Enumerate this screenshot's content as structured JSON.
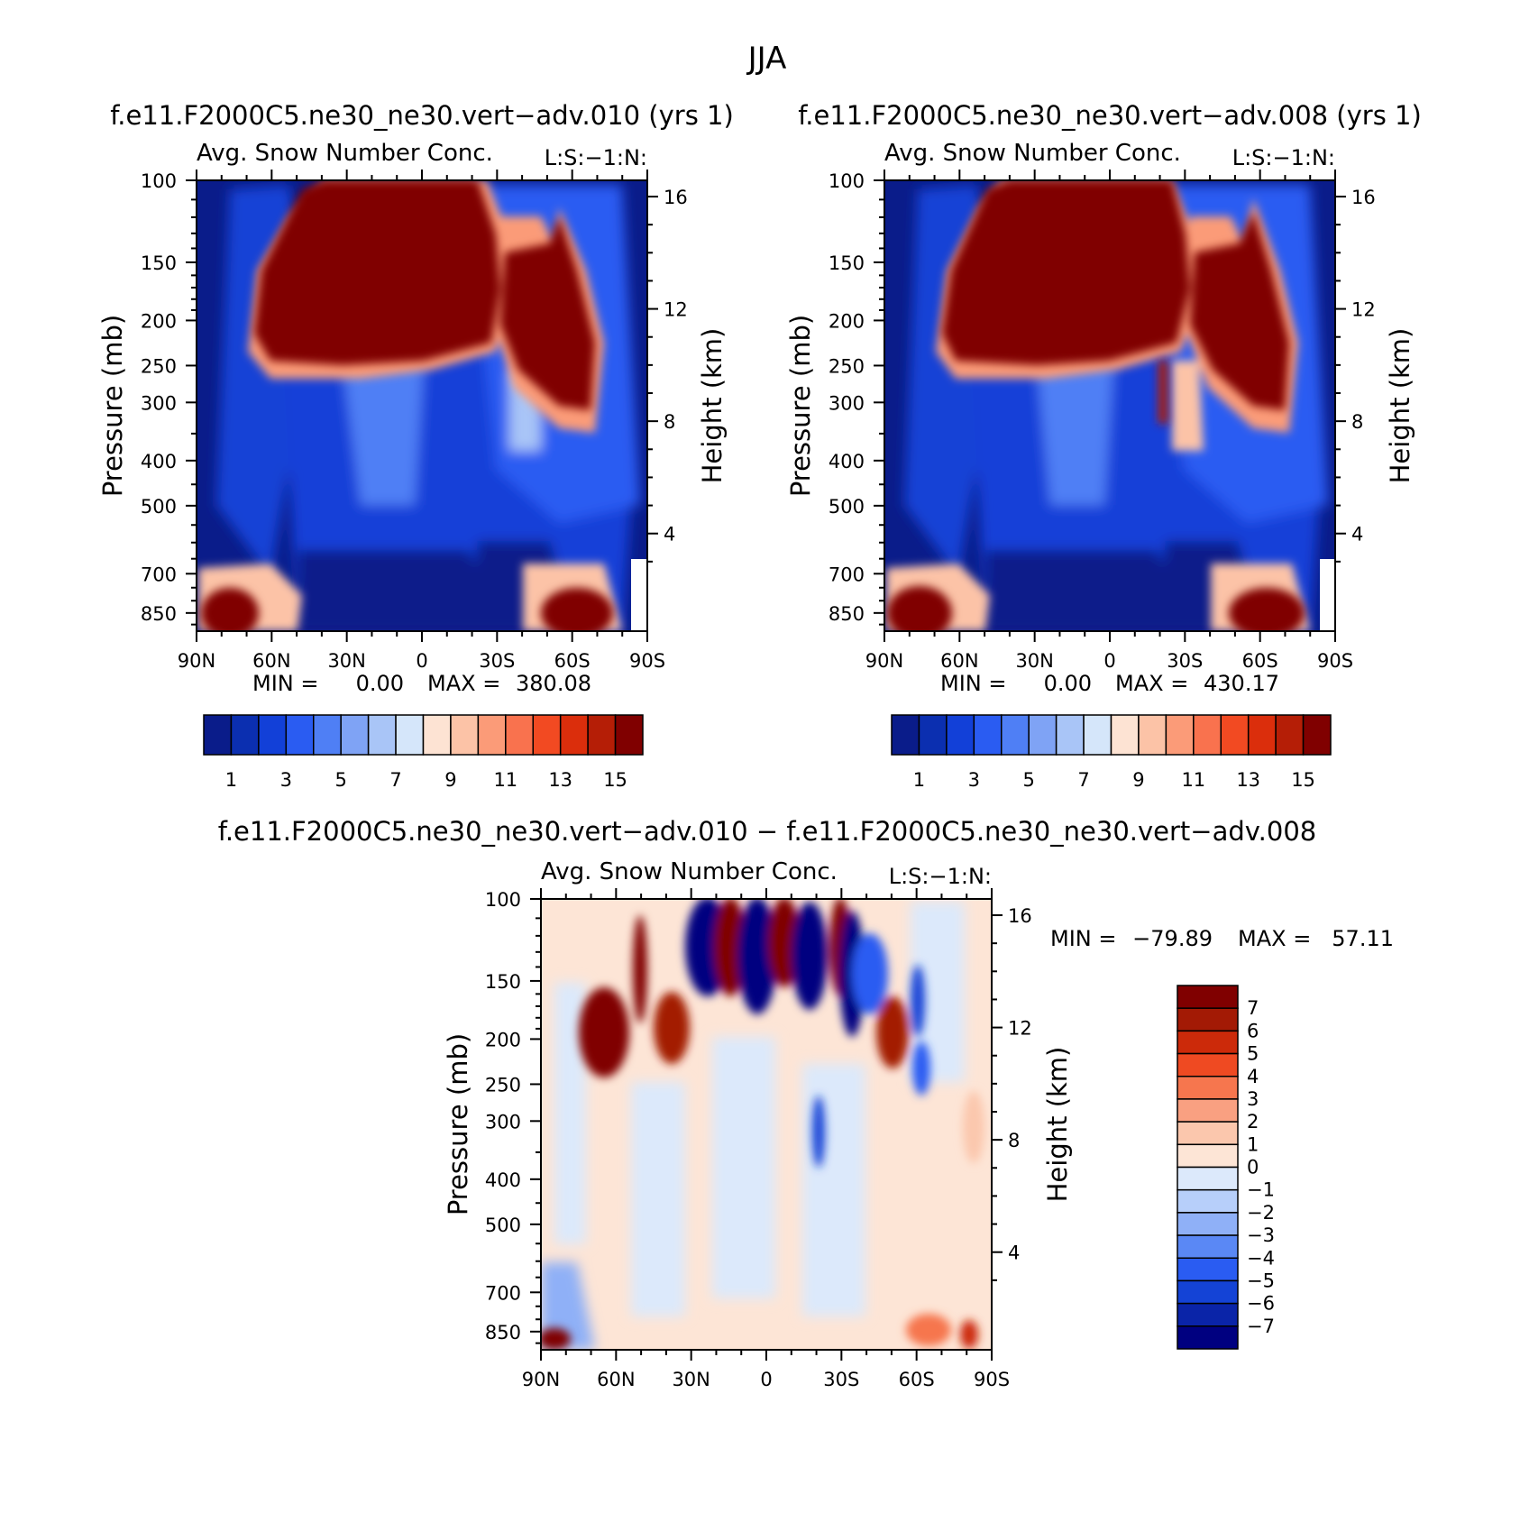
{
  "figure": {
    "title": "JJA"
  },
  "colors": {
    "abs_colorbar": [
      "#0a1c8a",
      "#0b2fb0",
      "#1240d8",
      "#2a5cf2",
      "#4f7ff5",
      "#7fa3f5",
      "#a9c5f7",
      "#d5e6fa",
      "#fde3d3",
      "#fcc3a7",
      "#fb9b78",
      "#f9724e",
      "#f24a22",
      "#db2e0c",
      "#b51e06",
      "#800000"
    ],
    "diff_colorbar": [
      "#000080",
      "#0a24a8",
      "#1443d6",
      "#2a5cf2",
      "#5a88f5",
      "#8fb0f7",
      "#b7cffa",
      "#dce9fb",
      "#fde5d6",
      "#fbc7ad",
      "#f9a081",
      "#f6764e",
      "#ef4a22",
      "#cc2a0a",
      "#a31a05",
      "#800000"
    ]
  },
  "panels": [
    {
      "id": "top-left",
      "case_title": "f.e11.F2000C5.ne30_ne30.vert−adv.010 (yrs 1)",
      "var_title": "Avg. Snow Number Conc.",
      "level_title": "L:S:−1:N:",
      "ylabel": "Pressure (mb)",
      "y2label": "Height (km)",
      "min_label": "MIN =",
      "min_value": "0.00",
      "max_label": "MAX =",
      "max_value": "380.08"
    },
    {
      "id": "top-right",
      "case_title": "f.e11.F2000C5.ne30_ne30.vert−adv.008 (yrs 1)",
      "var_title": "Avg. Snow Number Conc.",
      "level_title": "L:S:−1:N:",
      "ylabel": "Pressure (mb)",
      "y2label": "Height (km)",
      "min_label": "MIN =",
      "min_value": "0.00",
      "max_label": "MAX =",
      "max_value": "430.17"
    },
    {
      "id": "bottom",
      "case_title": "f.e11.F2000C5.ne30_ne30.vert−adv.010 − f.e11.F2000C5.ne30_ne30.vert−adv.008",
      "var_title": "Avg. Snow Number Conc.",
      "level_title": "L:S:−1:N:",
      "ylabel": "Pressure (mb)",
      "y2label": "Height (km)",
      "min_label": "MIN =",
      "min_value": "−79.89",
      "max_label": "MAX =",
      "max_value": "57.11"
    }
  ],
  "chart_data": [
    {
      "type": "heatmap",
      "title": "Avg. Snow Number Conc.",
      "xlabel": "",
      "ylabel": "Pressure (mb)",
      "y2label": "Height (km)",
      "x_ticks": [
        "90N",
        "60N",
        "30N",
        "0",
        "30S",
        "60S",
        "90S"
      ],
      "y_ticks": [
        100,
        150,
        200,
        250,
        300,
        400,
        500,
        700,
        850
      ],
      "y2_ticks": [
        16,
        12,
        8,
        4
      ],
      "y_scale": "log",
      "ylim": [
        100,
        930
      ],
      "colorbar_labels": [
        "1",
        "3",
        "5",
        "7",
        "9",
        "11",
        "13",
        "15"
      ],
      "min": 0.0,
      "max": 380.08
    },
    {
      "type": "heatmap",
      "title": "Avg. Snow Number Conc.",
      "xlabel": "",
      "ylabel": "Pressure (mb)",
      "y2label": "Height (km)",
      "x_ticks": [
        "90N",
        "60N",
        "30N",
        "0",
        "30S",
        "60S",
        "90S"
      ],
      "y_ticks": [
        100,
        150,
        200,
        250,
        300,
        400,
        500,
        700,
        850
      ],
      "y2_ticks": [
        16,
        12,
        8,
        4
      ],
      "y_scale": "log",
      "ylim": [
        100,
        930
      ],
      "colorbar_labels": [
        "1",
        "3",
        "5",
        "7",
        "9",
        "11",
        "13",
        "15"
      ],
      "min": 0.0,
      "max": 430.17
    },
    {
      "type": "heatmap",
      "title": "Avg. Snow Number Conc.",
      "xlabel": "",
      "ylabel": "Pressure (mb)",
      "y2label": "Height (km)",
      "x_ticks": [
        "90N",
        "60N",
        "30N",
        "0",
        "30S",
        "60S",
        "90S"
      ],
      "y_ticks": [
        100,
        150,
        200,
        250,
        300,
        400,
        500,
        700,
        850
      ],
      "y2_ticks": [
        16,
        12,
        8,
        4
      ],
      "y_scale": "log",
      "ylim": [
        100,
        930
      ],
      "colorbar_labels": [
        "7",
        "6",
        "5",
        "4",
        "3",
        "2",
        "1",
        "0",
        "−1",
        "−2",
        "−3",
        "−4",
        "−5",
        "−6",
        "−7"
      ],
      "min": -79.89,
      "max": 57.11
    }
  ]
}
